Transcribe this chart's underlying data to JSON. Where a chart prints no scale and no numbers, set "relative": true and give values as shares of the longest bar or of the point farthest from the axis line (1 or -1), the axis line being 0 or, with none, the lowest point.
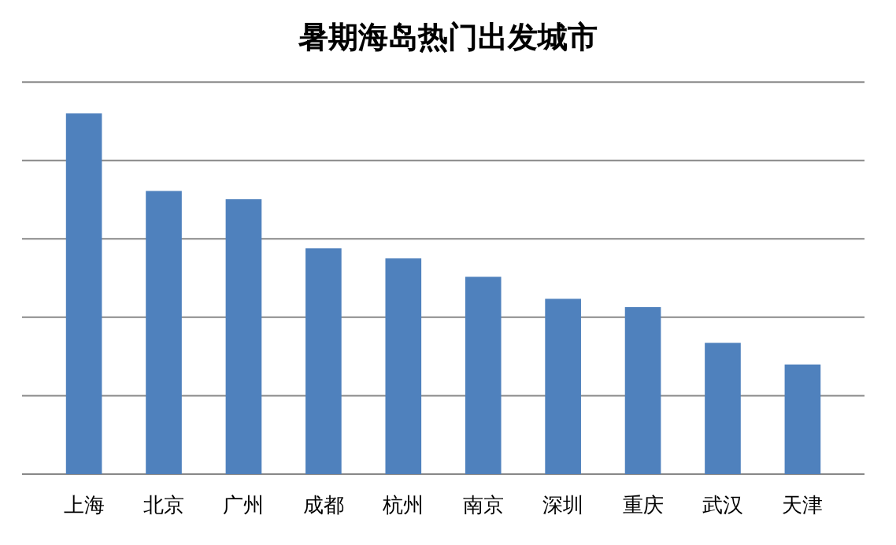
{
  "chart_data": {
    "type": "bar",
    "title": "暑期海岛热门出发城市",
    "categories": [
      "上海",
      "北京",
      "广州",
      "成都",
      "杭州",
      "南京",
      "深圳",
      "重庆",
      "武汉",
      "天津"
    ],
    "values": [
      1,
      0.785,
      0.762,
      0.626,
      0.598,
      0.547,
      0.486,
      0.463,
      0.364,
      0.304
    ],
    "color": "#4f81bd",
    "relative": true,
    "grid": "y"
  }
}
